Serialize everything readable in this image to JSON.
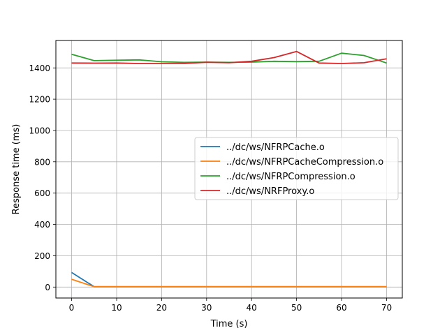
{
  "chart_data": {
    "type": "line",
    "title": "",
    "xlabel": "Time (s)",
    "ylabel": "Response time (ms)",
    "xlim": [
      -3.5,
      73.5
    ],
    "ylim": [
      -70,
      1575
    ],
    "xticks": [
      0,
      10,
      20,
      30,
      40,
      50,
      60,
      70
    ],
    "yticks": [
      0,
      200,
      400,
      600,
      800,
      1000,
      1200,
      1400
    ],
    "grid": true,
    "legend_position": "center-right",
    "series": [
      {
        "name": "../dc/ws/NFRPCache.o",
        "color": "#1f77b4",
        "x": [
          0,
          5,
          10,
          15,
          20,
          25,
          30,
          35,
          40,
          45,
          50,
          55,
          60,
          65,
          70
        ],
        "values": [
          93,
          2,
          2,
          2,
          2,
          2,
          2,
          2,
          2,
          2,
          2,
          2,
          2,
          2,
          2
        ]
      },
      {
        "name": "../dc/ws/NFRPCacheCompression.o",
        "color": "#ff7f0e",
        "x": [
          0,
          5,
          10,
          15,
          20,
          25,
          30,
          35,
          40,
          45,
          50,
          55,
          60,
          65,
          70
        ],
        "values": [
          50,
          2,
          2,
          2,
          2,
          2,
          2,
          2,
          2,
          2,
          2,
          2,
          2,
          2,
          2
        ]
      },
      {
        "name": "../dc/ws/NFRPCompression.o",
        "color": "#2ca02c",
        "x": [
          0,
          5,
          10,
          15,
          20,
          25,
          30,
          35,
          40,
          45,
          50,
          55,
          60,
          65,
          70
        ],
        "values": [
          1487,
          1446,
          1449,
          1451,
          1439,
          1435,
          1437,
          1435,
          1437,
          1442,
          1440,
          1442,
          1494,
          1479,
          1431
        ]
      },
      {
        "name": "../dc/ws/NRFProxy.o",
        "color": "#d62728",
        "x": [
          0,
          5,
          10,
          15,
          20,
          25,
          30,
          35,
          40,
          45,
          50,
          55,
          60,
          65,
          70
        ],
        "values": [
          1431,
          1430,
          1431,
          1428,
          1428,
          1428,
          1436,
          1433,
          1442,
          1466,
          1505,
          1431,
          1428,
          1433,
          1458
        ]
      }
    ]
  }
}
